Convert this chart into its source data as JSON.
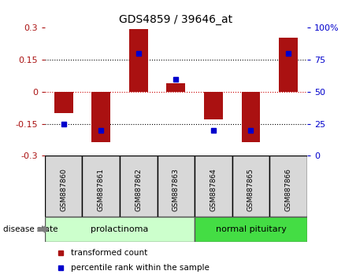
{
  "title": "GDS4859 / 39646_at",
  "samples": [
    "GSM887860",
    "GSM887861",
    "GSM887862",
    "GSM887863",
    "GSM887864",
    "GSM887865",
    "GSM887866"
  ],
  "transformed_count": [
    -0.1,
    -0.235,
    0.295,
    0.04,
    -0.13,
    -0.235,
    0.255
  ],
  "percentile_rank": [
    25,
    20,
    80,
    60,
    20,
    20,
    80
  ],
  "ylim_left": [
    -0.3,
    0.3
  ],
  "ylim_right": [
    0,
    100
  ],
  "yticks_left": [
    -0.3,
    -0.15,
    0,
    0.15,
    0.3
  ],
  "yticks_right": [
    0,
    25,
    50,
    75,
    100
  ],
  "bar_color": "#aa1111",
  "percentile_color": "#0000cc",
  "group1_label": "prolactinoma",
  "group2_label": "normal pituitary",
  "group1_color": "#ccffcc",
  "group2_color": "#44dd44",
  "sample_bg_color": "#d8d8d8",
  "disease_state_label": "disease state",
  "legend_red_label": "transformed count",
  "legend_blue_label": "percentile rank within the sample",
  "bar_width": 0.5
}
